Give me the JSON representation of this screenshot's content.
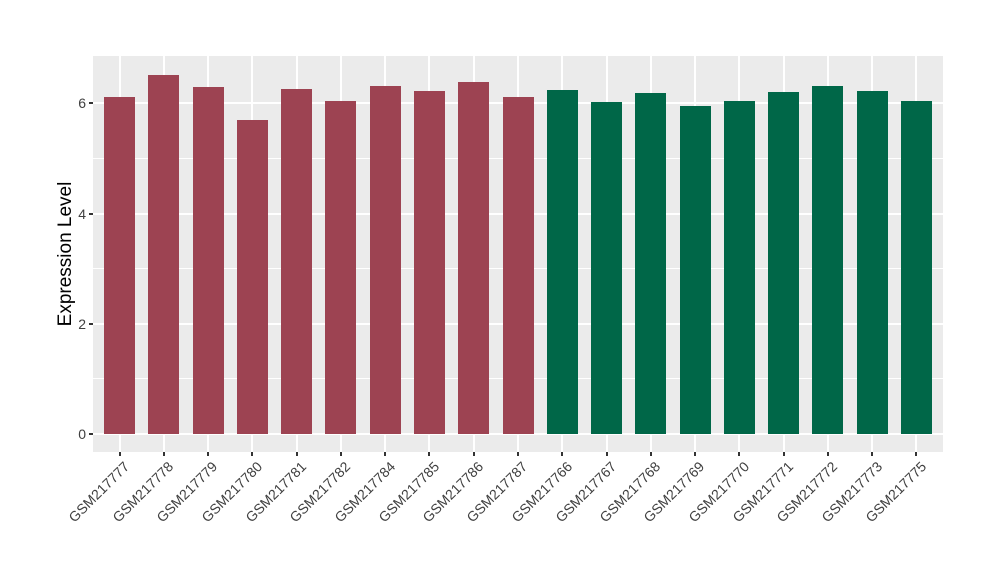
{
  "figure": {
    "background": "#ffffff",
    "panel_bg": "#ebebeb",
    "grid_color": "#ffffff",
    "tick_mark_color": "#333333",
    "axis_text_color": "#404040",
    "axis_title_color": "#000000"
  },
  "chart_data": {
    "type": "bar",
    "title": "",
    "xlabel": "",
    "ylabel": "Expression Level",
    "ylim": [
      -0.33,
      6.86
    ],
    "yticks": [
      0,
      2,
      4,
      6
    ],
    "ytick_labels": [
      "0",
      "2",
      "4",
      "6"
    ],
    "grid": true,
    "legend_position": "none",
    "x_label_angle": 45,
    "groups": [
      {
        "name": "group-1",
        "color": "#9d4352"
      },
      {
        "name": "group-2",
        "color": "#006748"
      }
    ],
    "bars": [
      {
        "label": "GSM217777",
        "value": 6.12,
        "group": 0
      },
      {
        "label": "GSM217778",
        "value": 6.52,
        "group": 0
      },
      {
        "label": "GSM217779",
        "value": 6.3,
        "group": 0
      },
      {
        "label": "GSM217780",
        "value": 5.7,
        "group": 0
      },
      {
        "label": "GSM217781",
        "value": 6.27,
        "group": 0
      },
      {
        "label": "GSM217782",
        "value": 6.04,
        "group": 0
      },
      {
        "label": "GSM217784",
        "value": 6.31,
        "group": 0
      },
      {
        "label": "GSM217785",
        "value": 6.22,
        "group": 0
      },
      {
        "label": "GSM217786",
        "value": 6.39,
        "group": 0
      },
      {
        "label": "GSM217787",
        "value": 6.11,
        "group": 0
      },
      {
        "label": "GSM217766",
        "value": 6.24,
        "group": 1
      },
      {
        "label": "GSM217767",
        "value": 6.03,
        "group": 1
      },
      {
        "label": "GSM217768",
        "value": 6.18,
        "group": 1
      },
      {
        "label": "GSM217769",
        "value": 5.96,
        "group": 1
      },
      {
        "label": "GSM217770",
        "value": 6.04,
        "group": 1
      },
      {
        "label": "GSM217771",
        "value": 6.21,
        "group": 1
      },
      {
        "label": "GSM217772",
        "value": 6.31,
        "group": 1
      },
      {
        "label": "GSM217773",
        "value": 6.22,
        "group": 1
      },
      {
        "label": "GSM217775",
        "value": 6.04,
        "group": 1
      }
    ]
  }
}
